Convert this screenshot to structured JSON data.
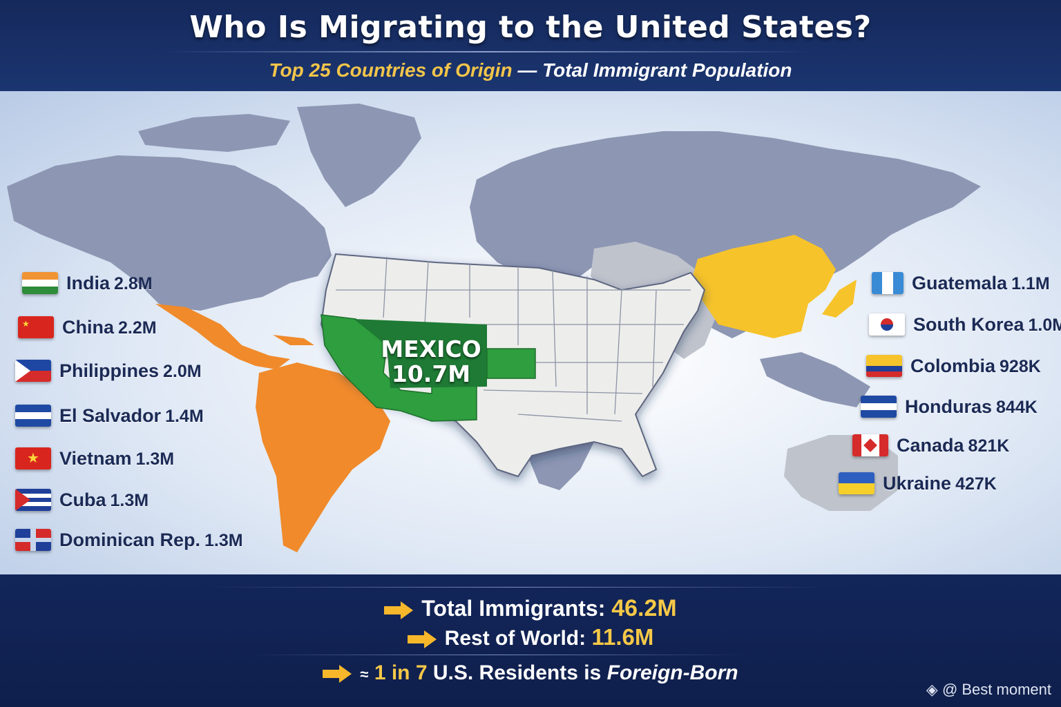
{
  "header": {
    "title": "Who Is Migrating to the United States?",
    "subtitle_highlight": "Top 25 Countries of Origin",
    "subtitle_separator": " — ",
    "subtitle_rest": "Total Immigrant Population"
  },
  "map": {
    "highlight": {
      "name": "MEXICO",
      "value": "10.7M"
    },
    "colors": {
      "mexico": "#2e9e3f",
      "latin_america": "#f08a2b",
      "asia": "#f6c32b",
      "land": "#8d97b3",
      "usa": "#ededeb",
      "light_grey": "#bfc3cc"
    }
  },
  "left_list": [
    {
      "country": "India",
      "value": "2.8M"
    },
    {
      "country": "China",
      "value": "2.2M"
    },
    {
      "country": "Philippines",
      "value": "2.0M"
    },
    {
      "country": "El Salvador",
      "value": "1.4M"
    },
    {
      "country": "Vietnam",
      "value": "1.3M"
    },
    {
      "country": "Cuba",
      "value": "1.3M"
    },
    {
      "country": "Dominican Rep.",
      "value": "1.3M"
    }
  ],
  "right_list": [
    {
      "country": "Guatemala",
      "value": "1.1M"
    },
    {
      "country": "South Korea",
      "value": "1.0M"
    },
    {
      "country": "Colombia",
      "value": "928K"
    },
    {
      "country": "Honduras",
      "value": "844K"
    },
    {
      "country": "Canada",
      "value": "821K"
    },
    {
      "country": "Ukraine",
      "value": "427K"
    }
  ],
  "footer": {
    "total_label": "Total Immigrants:",
    "total_value": "46.2M",
    "rest_label": "Rest of World:",
    "rest_value": "11.6M",
    "ratio_prefix": "≈",
    "ratio_highlight": "1 in 7",
    "ratio_middle": "U.S. Residents is",
    "ratio_end": "Foreign-Born",
    "credit": "@ Best moment"
  }
}
